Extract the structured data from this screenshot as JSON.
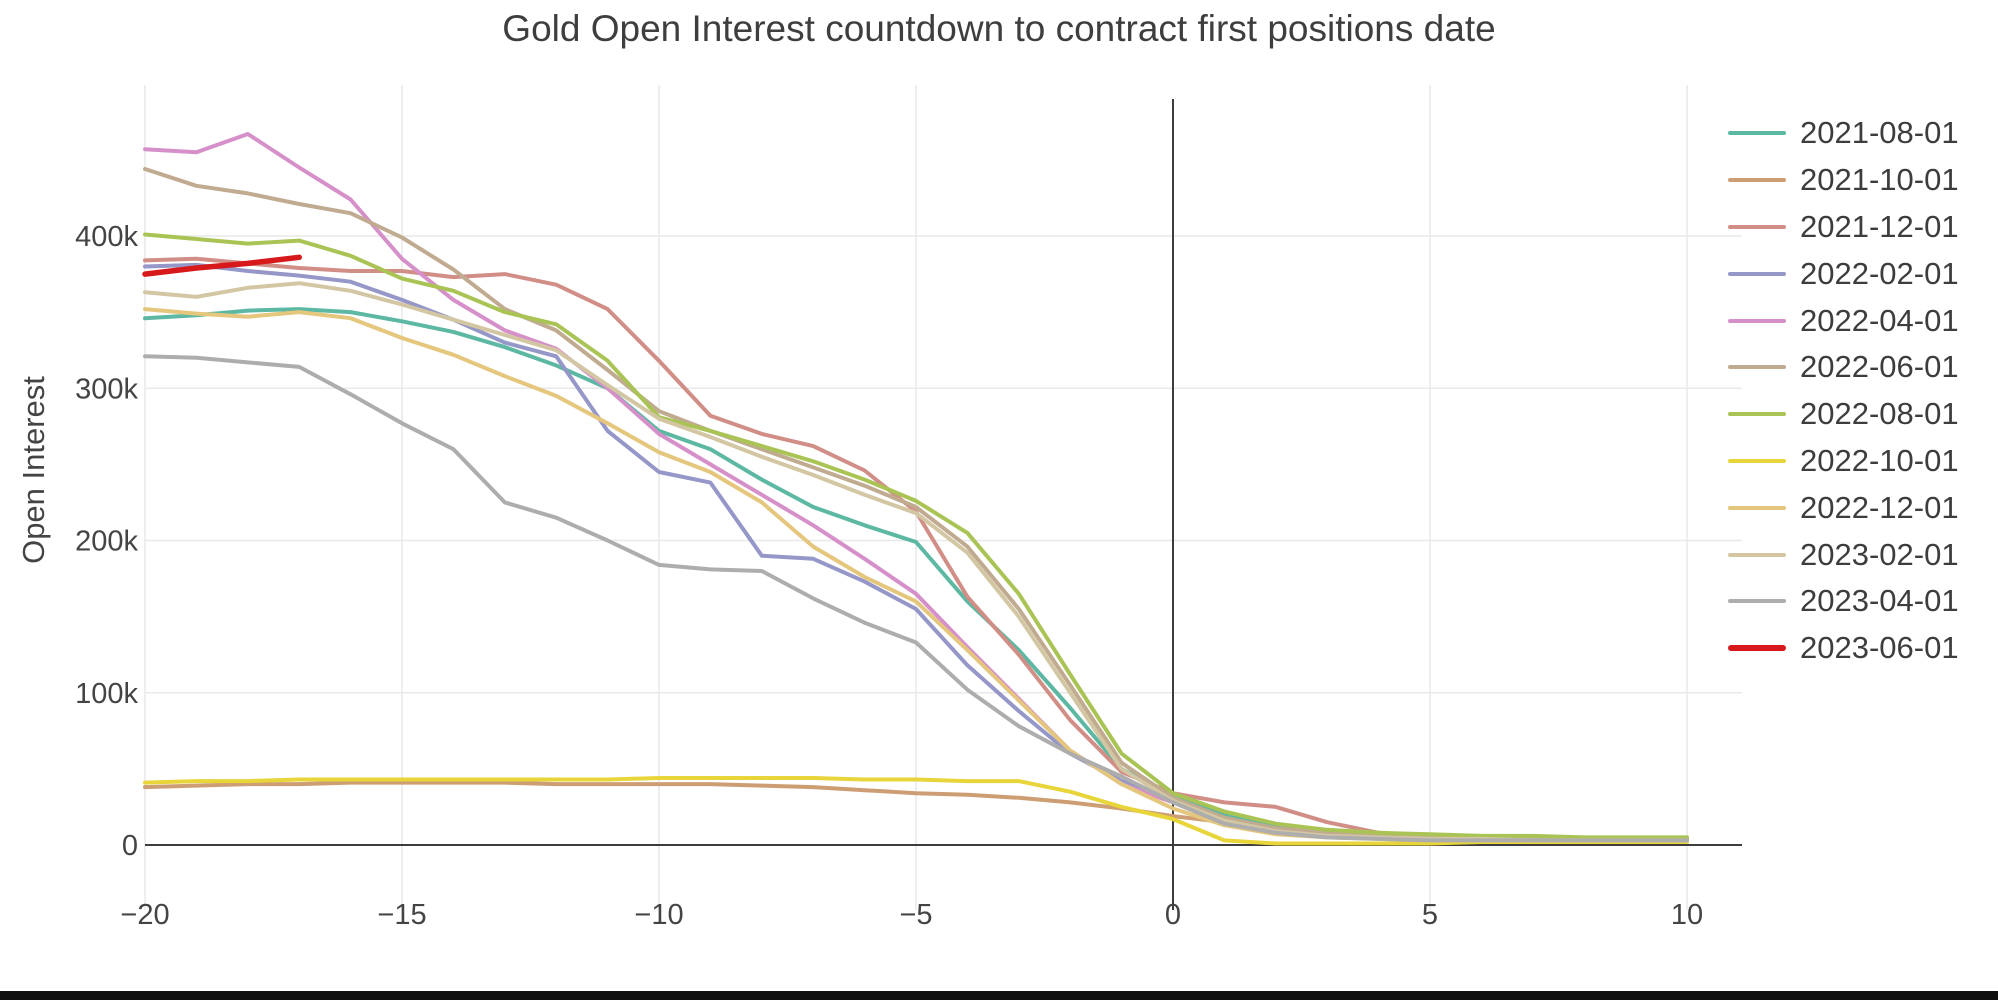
{
  "title": "Gold Open Interest countdown to contract first positions date",
  "chart_data": {
    "type": "line",
    "title": "Gold Open Interest countdown to contract first positions date",
    "xlabel": "",
    "ylabel": "Open Interest",
    "values_unit": "thousands",
    "grid": true,
    "legend_position": "right",
    "xlim": [
      -20.5,
      11
    ],
    "ylim": [
      -43000,
      499000
    ],
    "x": [
      -20,
      -19,
      -18,
      -17,
      -16,
      -15,
      -14,
      -13,
      -12,
      -11,
      -10,
      -9,
      -8,
      -7,
      -6,
      -5,
      -4,
      -3,
      -2,
      -1,
      0,
      1,
      2,
      3,
      4,
      5,
      6,
      7,
      8,
      9,
      10
    ],
    "x_ticks": [
      {
        "v": -20,
        "label": "−20"
      },
      {
        "v": -15,
        "label": "−15"
      },
      {
        "v": -10,
        "label": "−10"
      },
      {
        "v": -5,
        "label": "−5"
      },
      {
        "v": 0,
        "label": "0"
      },
      {
        "v": 5,
        "label": "5"
      },
      {
        "v": 10,
        "label": "10"
      }
    ],
    "y_ticks": [
      {
        "v": 0,
        "label": "0"
      },
      {
        "v": 100,
        "label": "100k"
      },
      {
        "v": 200,
        "label": "200k"
      },
      {
        "v": 300,
        "label": "300k"
      },
      {
        "v": 400,
        "label": "400k"
      }
    ],
    "zero_line_color": "#3d3d3d",
    "grid_color": "#e9e9e9",
    "series": [
      {
        "name": "2021-08-01",
        "color": "#5cb8a2",
        "width": 4,
        "values": [
          346,
          348,
          351,
          352,
          350,
          344,
          337,
          327,
          315,
          300,
          272,
          260,
          240,
          222,
          210,
          199,
          160,
          128,
          90,
          50,
          32,
          20,
          12,
          8,
          6,
          5,
          5,
          4,
          4,
          4,
          4
        ]
      },
      {
        "name": "2021-10-01",
        "color": "#cd9e74",
        "width": 4,
        "values": [
          38,
          39,
          40,
          40,
          41,
          41,
          41,
          41,
          40,
          40,
          40,
          40,
          39,
          38,
          36,
          34,
          33,
          31,
          28,
          24,
          19,
          15,
          11,
          8,
          6,
          5,
          5,
          4,
          4,
          3,
          3
        ]
      },
      {
        "name": "2021-12-01",
        "color": "#d18e86",
        "width": 4,
        "values": [
          384,
          385,
          382,
          379,
          377,
          377,
          373,
          375,
          368,
          352,
          318,
          282,
          270,
          262,
          246,
          219,
          163,
          125,
          82,
          48,
          34,
          28,
          25,
          15,
          8,
          6,
          5,
          5,
          4,
          4,
          4
        ]
      },
      {
        "name": "2022-02-01",
        "color": "#9497c7",
        "width": 4,
        "values": [
          380,
          381,
          377,
          374,
          370,
          358,
          345,
          330,
          321,
          272,
          245,
          238,
          190,
          188,
          173,
          155,
          118,
          88,
          60,
          42,
          30,
          15,
          8,
          6,
          5,
          4,
          4,
          4,
          3,
          3,
          3
        ]
      },
      {
        "name": "2022-04-01",
        "color": "#d690c9",
        "width": 4,
        "values": [
          457,
          455,
          467,
          445,
          424,
          385,
          358,
          338,
          326,
          300,
          270,
          250,
          230,
          210,
          188,
          165,
          130,
          96,
          62,
          40,
          28,
          17,
          11,
          8,
          6,
          5,
          4,
          4,
          4,
          3,
          3
        ]
      },
      {
        "name": "2022-06-01",
        "color": "#c0ab90",
        "width": 4,
        "values": [
          444,
          433,
          428,
          421,
          415,
          399,
          378,
          352,
          338,
          312,
          285,
          272,
          260,
          248,
          236,
          222,
          196,
          155,
          105,
          54,
          31,
          18,
          11,
          8,
          6,
          5,
          4,
          4,
          4,
          4,
          4
        ]
      },
      {
        "name": "2022-08-01",
        "color": "#a9c455",
        "width": 4,
        "values": [
          401,
          398,
          395,
          397,
          387,
          372,
          364,
          350,
          342,
          318,
          281,
          272,
          262,
          252,
          240,
          226,
          205,
          165,
          112,
          60,
          34,
          22,
          14,
          10,
          8,
          7,
          6,
          6,
          5,
          5,
          5
        ]
      },
      {
        "name": "2022-10-01",
        "color": "#e7d53a",
        "width": 4,
        "values": [
          41,
          42,
          42,
          43,
          43,
          43,
          43,
          43,
          43,
          43,
          44,
          44,
          44,
          44,
          43,
          43,
          42,
          42,
          35,
          25,
          17,
          3,
          1,
          1,
          1,
          1,
          2,
          2,
          2,
          2,
          2
        ]
      },
      {
        "name": "2022-12-01",
        "color": "#e5c67d",
        "width": 4,
        "values": [
          352,
          349,
          347,
          350,
          346,
          333,
          322,
          308,
          295,
          277,
          258,
          245,
          225,
          196,
          176,
          160,
          128,
          95,
          62,
          40,
          24,
          13,
          7,
          5,
          4,
          3,
          3,
          3,
          3,
          3,
          3
        ]
      },
      {
        "name": "2023-02-01",
        "color": "#d3c6a3",
        "width": 4,
        "values": [
          363,
          360,
          366,
          369,
          364,
          355,
          345,
          335,
          325,
          302,
          280,
          268,
          255,
          243,
          230,
          218,
          192,
          150,
          100,
          50,
          29,
          16,
          9,
          6,
          5,
          4,
          4,
          3,
          3,
          3,
          3
        ]
      },
      {
        "name": "2023-04-01",
        "color": "#adadad",
        "width": 4,
        "values": [
          321,
          320,
          317,
          314,
          296,
          277,
          260,
          225,
          215,
          200,
          184,
          181,
          180,
          162,
          146,
          133,
          102,
          78,
          60,
          45,
          28,
          14,
          8,
          5,
          4,
          3,
          3,
          3,
          3,
          3,
          3
        ]
      },
      {
        "name": "2023-06-01",
        "color": "#d7191c",
        "width": 5.5,
        "values": [
          375,
          379,
          382,
          386,
          null,
          null,
          null,
          null,
          null,
          null,
          null,
          null,
          null,
          null,
          null,
          null,
          null,
          null,
          null,
          null,
          null,
          null,
          null,
          null,
          null,
          null,
          null,
          null,
          null,
          null,
          null
        ]
      }
    ]
  }
}
